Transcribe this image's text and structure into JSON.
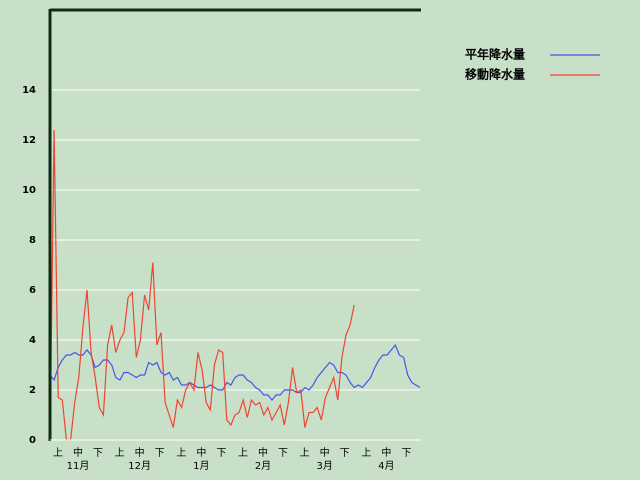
{
  "chart_data": {
    "type": "line",
    "x_labels": [
      "上",
      "中",
      "下",
      "上",
      "中",
      "下",
      "上",
      "中",
      "下",
      "上",
      "中",
      "下",
      "上",
      "中",
      "下",
      "上",
      "中",
      "下"
    ],
    "months": [
      "11月",
      "12月",
      "1月",
      "2月",
      "3月",
      "4月"
    ],
    "ylim": [
      0,
      17.2
    ],
    "yticks": [
      0,
      2,
      4,
      6,
      8,
      10,
      12,
      14
    ],
    "grid": true,
    "legend": "top-right",
    "series": [
      {
        "name": "平年降水量",
        "color": "#4455ee",
        "values": [
          2.6,
          2.4,
          2.9,
          3.2,
          3.4,
          3.4,
          3.5,
          3.4,
          3.4,
          3.6,
          3.4,
          2.9,
          3.0,
          3.2,
          3.2,
          3.0,
          2.5,
          2.4,
          2.7,
          2.7,
          2.6,
          2.5,
          2.6,
          2.6,
          3.1,
          3.0,
          3.1,
          2.7,
          2.6,
          2.7,
          2.4,
          2.5,
          2.2,
          2.2,
          2.3,
          2.2,
          2.1,
          2.1,
          2.1,
          2.2,
          2.1,
          2.0,
          2.0,
          2.3,
          2.2,
          2.5,
          2.6,
          2.6,
          2.4,
          2.3,
          2.1,
          2.0,
          1.8,
          1.8,
          1.6,
          1.8,
          1.8,
          2.0,
          2.0,
          2.0,
          1.9,
          1.9,
          2.1,
          2.0,
          2.2,
          2.5,
          2.7,
          2.9,
          3.1,
          3.0,
          2.7,
          2.7,
          2.6,
          2.3,
          2.1,
          2.2,
          2.1,
          2.3,
          2.5,
          2.9,
          3.2,
          3.4,
          3.4,
          3.6,
          3.8,
          3.4,
          3.3,
          2.6,
          2.3,
          2.2,
          2.1
        ]
      },
      {
        "name": "移動降水量",
        "color": "#ee4433",
        "values": [
          0,
          12.4,
          1.7,
          1.6,
          0,
          0,
          1.5,
          2.5,
          4.5,
          6.0,
          3.5,
          2.5,
          1.3,
          1.0,
          3.8,
          4.6,
          3.5,
          4.0,
          4.3,
          5.7,
          5.9,
          3.3,
          4.0,
          5.8,
          5.2,
          7.1,
          3.8,
          4.3,
          1.5,
          1.0,
          0.5,
          1.6,
          1.3,
          2.0,
          2.3,
          2.0,
          3.5,
          2.8,
          1.5,
          1.2,
          3.0,
          3.6,
          3.5,
          0.8,
          0.6,
          1.0,
          1.1,
          1.6,
          0.9,
          1.6,
          1.4,
          1.5,
          1.0,
          1.3,
          0.8,
          1.1,
          1.4,
          0.6,
          1.5,
          2.9,
          1.9,
          2.0,
          0.5,
          1.1,
          1.1,
          1.3,
          0.8,
          1.7,
          2.1,
          2.5,
          1.6,
          3.3,
          4.2,
          4.6,
          5.4,
          null,
          null,
          null,
          null,
          null,
          null,
          null,
          null,
          null,
          null,
          null,
          null,
          null,
          null,
          null,
          null
        ]
      }
    ]
  }
}
